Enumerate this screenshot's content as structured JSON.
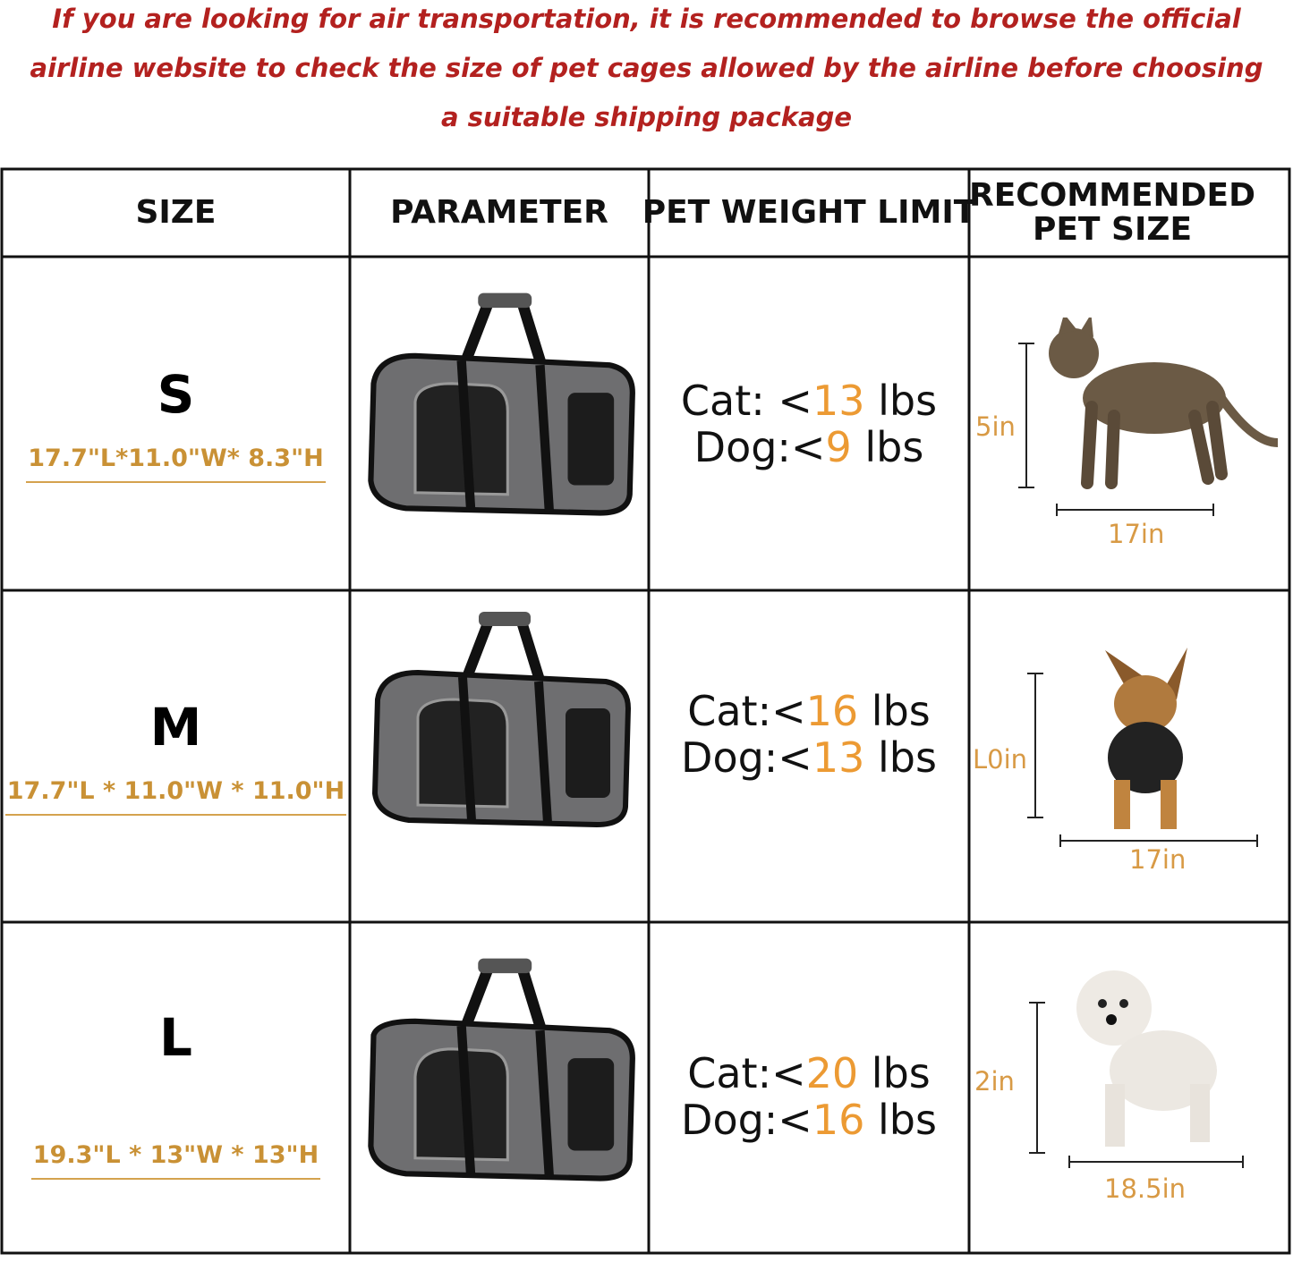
{
  "notice": "If you are looking for air transportation, it is recommended to browse the official airline website to check the size of pet cages allowed by the airline before choosing a suitable shipping package",
  "headers": [
    "SIZE",
    "PARAMETER",
    "PET WEIGHT LIMIT",
    "RECOMMENDED PET SIZE"
  ],
  "rows": [
    {
      "size": "S",
      "dims": "17.7\"L*11.0\"W* 8.3\"H",
      "cat_prefix": "Cat: <",
      "cat": "13",
      "dog_prefix": "Dog:<",
      "dog": "9",
      "unit": " lbs",
      "pet": "cat",
      "height_label": "5in",
      "length_label": "17in"
    },
    {
      "size": "M",
      "dims": "17.7\"L * 11.0\"W * 11.0\"H",
      "cat_prefix": "Cat:<",
      "cat": "16",
      "dog_prefix": "Dog:<",
      "dog": "13",
      "unit": " lbs",
      "pet": "yorkshire-terrier",
      "height_label": "L0in",
      "length_label": "17in"
    },
    {
      "size": "L",
      "dims": "19.3\"L * 13\"W * 13\"H",
      "cat_prefix": "Cat:<",
      "cat": "20",
      "dog_prefix": "Dog:<",
      "dog": "16",
      "unit": " lbs",
      "pet": "white-dog",
      "height_label": "2in",
      "length_label": "18.5in"
    }
  ],
  "colors": {
    "notice": "#b3211f",
    "accent": "#ec9a33",
    "dims": "#c99135",
    "carrier": "#6e6e70"
  }
}
